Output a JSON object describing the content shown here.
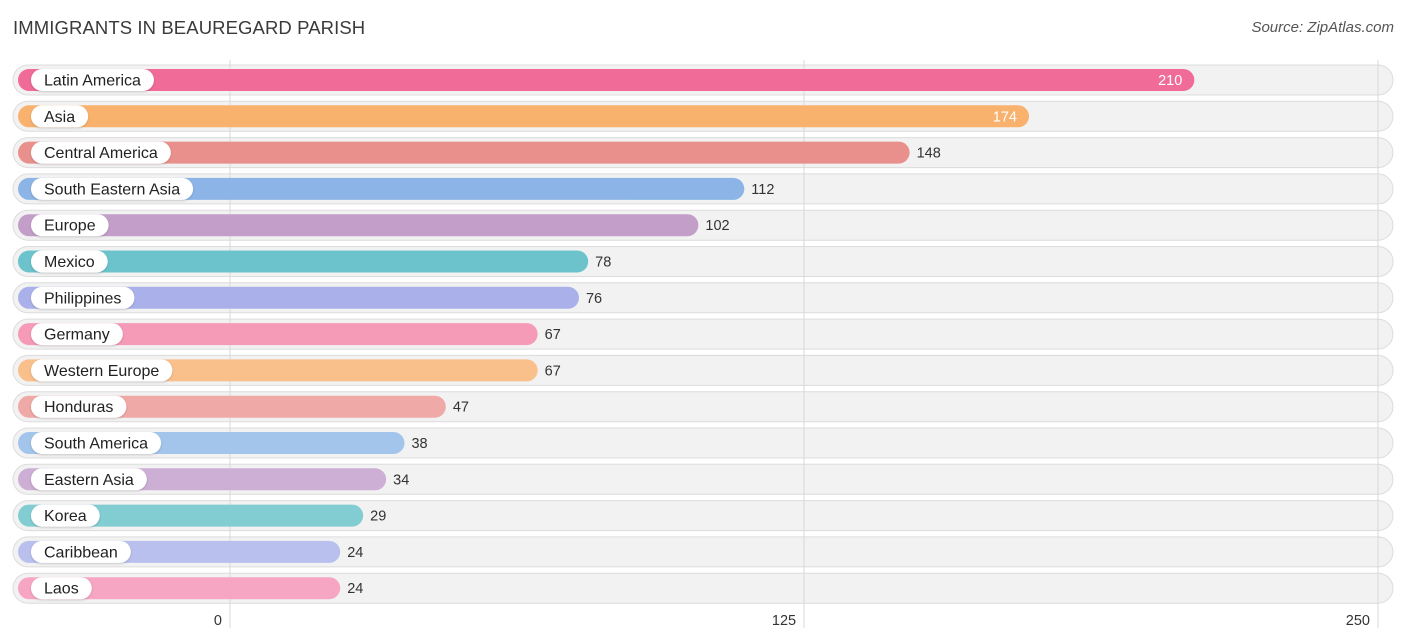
{
  "header": {
    "title": "IMMIGRANTS IN BEAUREGARD PARISH",
    "source": "Source: ZipAtlas.com"
  },
  "chart_data": {
    "type": "bar",
    "orientation": "horizontal",
    "title": "IMMIGRANTS IN BEAUREGARD PARISH",
    "xlabel": "",
    "ylabel": "",
    "xlim": [
      0,
      250
    ],
    "ticks": [
      0,
      125,
      250
    ],
    "grid": true,
    "categories": [
      "Latin America",
      "Asia",
      "Central America",
      "South Eastern Asia",
      "Europe",
      "Mexico",
      "Philippines",
      "Germany",
      "Western Europe",
      "Honduras",
      "South America",
      "Eastern Asia",
      "Korea",
      "Caribbean",
      "Laos"
    ],
    "values": [
      210,
      174,
      148,
      112,
      102,
      78,
      76,
      67,
      67,
      47,
      38,
      34,
      29,
      24,
      24
    ],
    "colors": [
      "#f06b97",
      "#f9b26e",
      "#e9908c",
      "#8cb4e6",
      "#c39ec9",
      "#6cc3cc",
      "#aab1ea",
      "#f59ab7",
      "#f9c08c",
      "#efa9a6",
      "#a3c5ec",
      "#cdaed4",
      "#82cdd2",
      "#b9c0ee",
      "#f6a6c3"
    ]
  }
}
